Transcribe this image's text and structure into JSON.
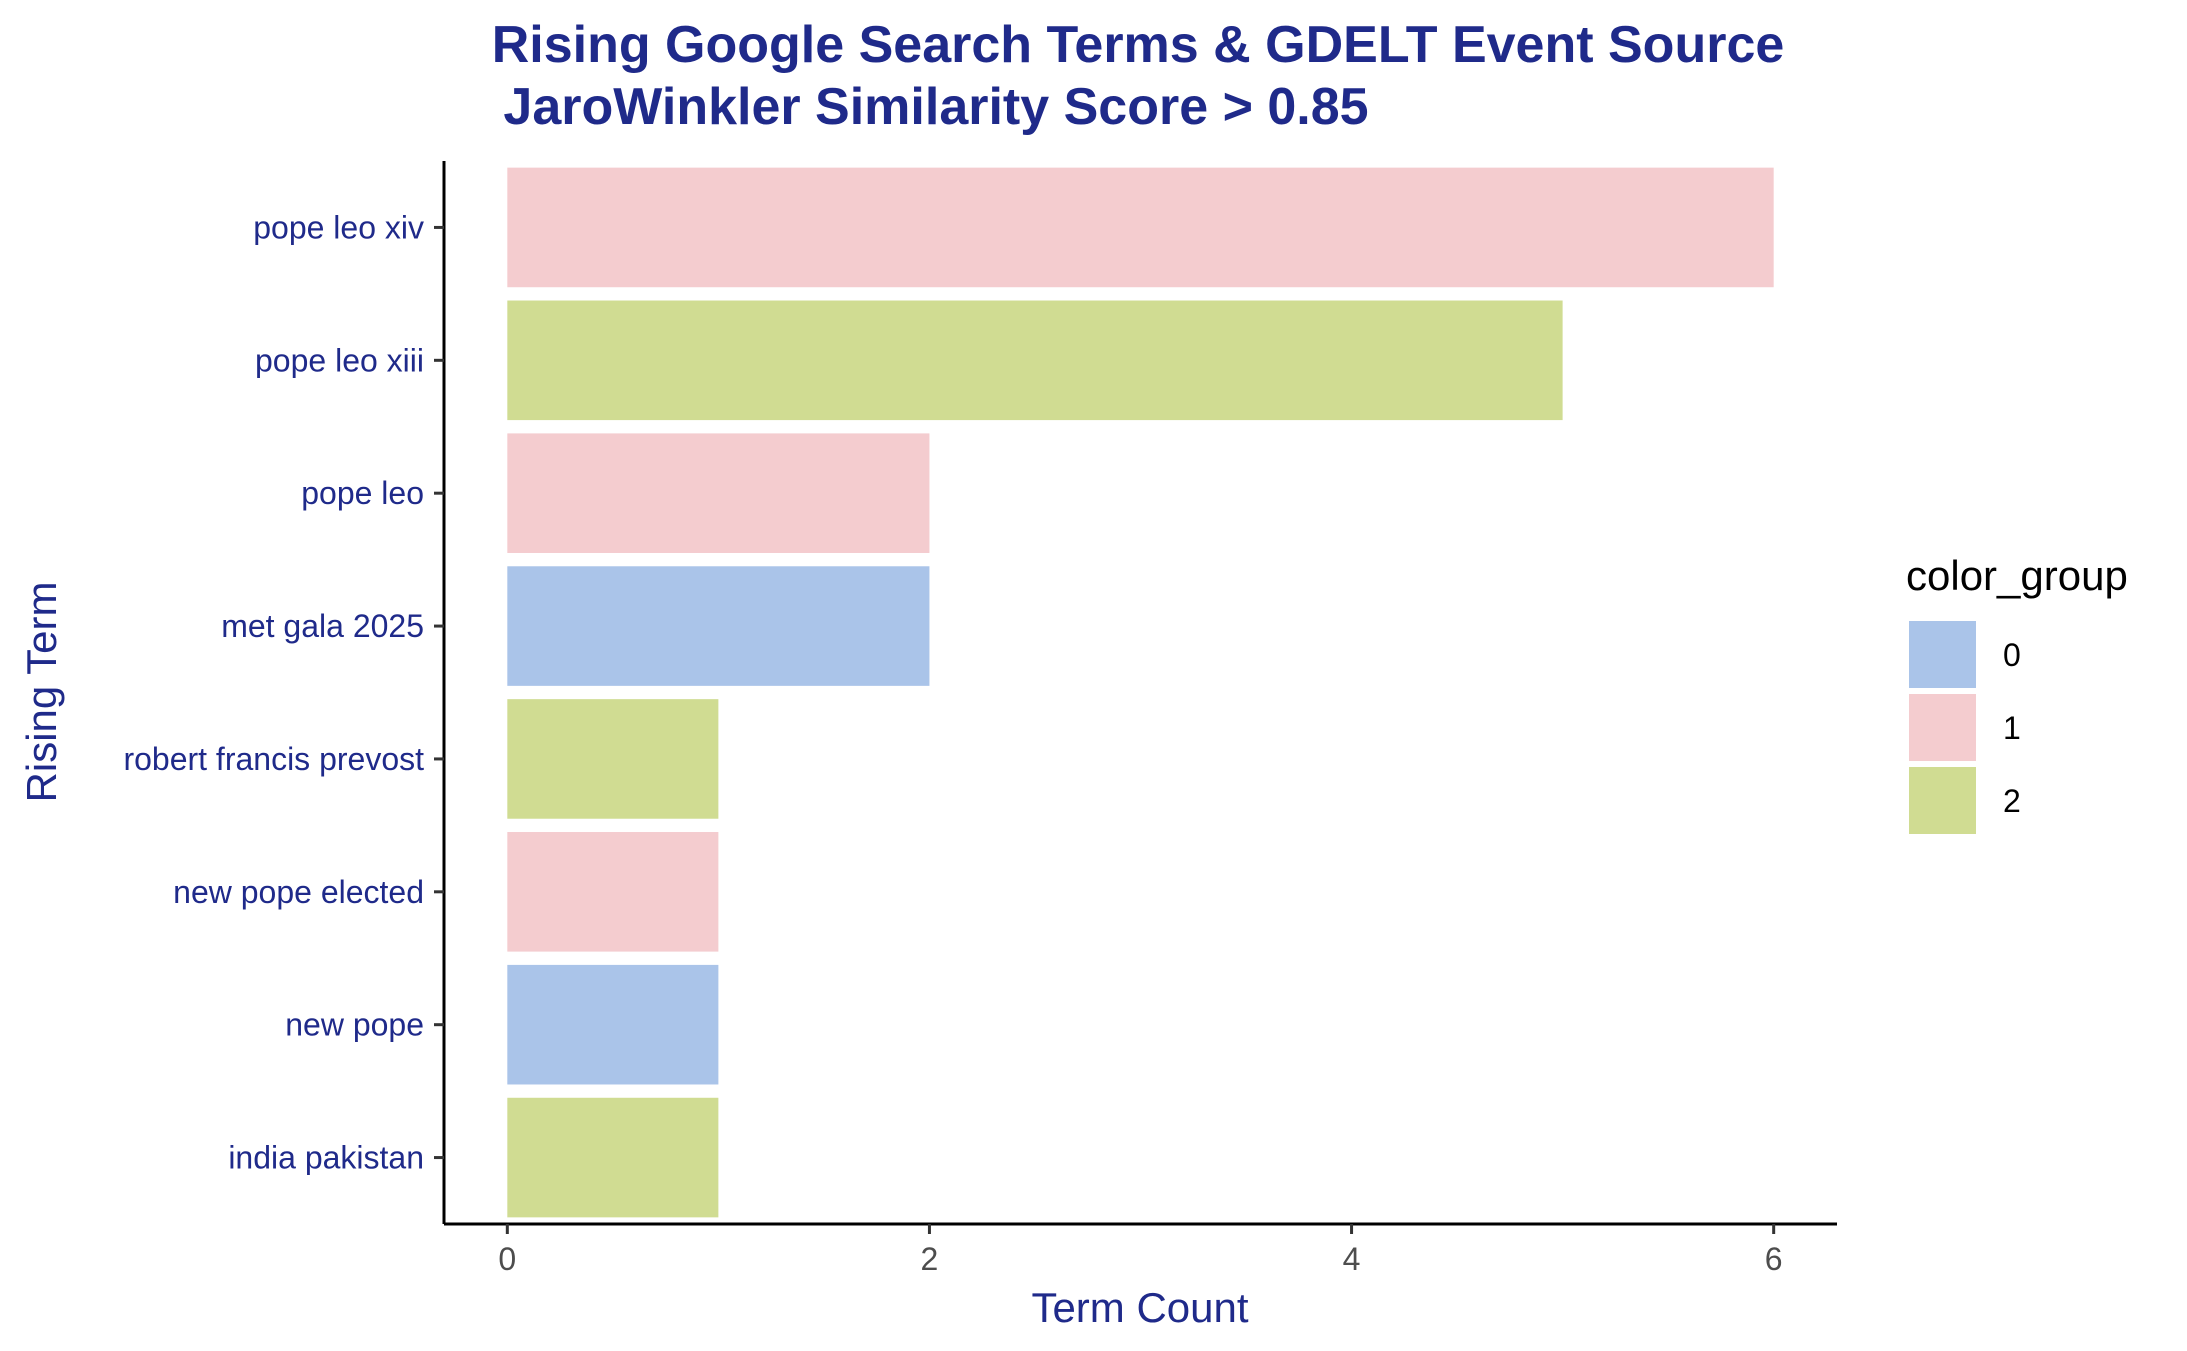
{
  "chart_data": {
    "type": "bar",
    "orientation": "horizontal",
    "title": "Rising Google Search Terms & GDELT Event Source",
    "subtitle": "JaroWinkler Similarity Score > 0.85",
    "xlabel": "Term Count",
    "ylabel": "Rising Term",
    "xlim": [
      -0.3,
      6.3
    ],
    "xticks": [
      "0",
      "2",
      "4",
      "6"
    ],
    "grid": false,
    "legend": {
      "title": "color_group",
      "position": "right",
      "entries": [
        {
          "label": "0",
          "color": "#aac4e9"
        },
        {
          "label": "1",
          "color": "#f4cccf"
        },
        {
          "label": "2",
          "color": "#d0dc92"
        }
      ]
    },
    "categories": [
      "pope leo xiv",
      "pope leo xiii",
      "pope leo",
      "met gala 2025",
      "robert francis prevost",
      "new pope elected",
      "new pope",
      "india pakistan"
    ],
    "values": [
      6,
      5,
      2,
      2,
      1,
      1,
      1,
      1
    ],
    "color_group": [
      "1",
      "2",
      "1",
      "0",
      "2",
      "1",
      "0",
      "2"
    ]
  }
}
